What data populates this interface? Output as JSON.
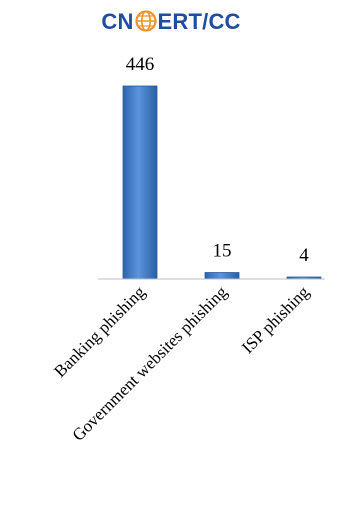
{
  "logo": {
    "left_text": "CN",
    "right_text": "ERT/CC",
    "brand_color": "#1f4e9e",
    "globe_color": "#f0932b"
  },
  "chart_data": {
    "type": "bar",
    "categories": [
      "Banking phishing",
      "Government websites phishing",
      "ISP phishing"
    ],
    "values": [
      446,
      15,
      4
    ],
    "data_labels": [
      "446",
      "15",
      "4"
    ],
    "title": "",
    "xlabel": "",
    "ylabel": "",
    "ylim": [
      0,
      446
    ],
    "grid": false,
    "legend": "none",
    "bar_color": "#3a78c4"
  }
}
